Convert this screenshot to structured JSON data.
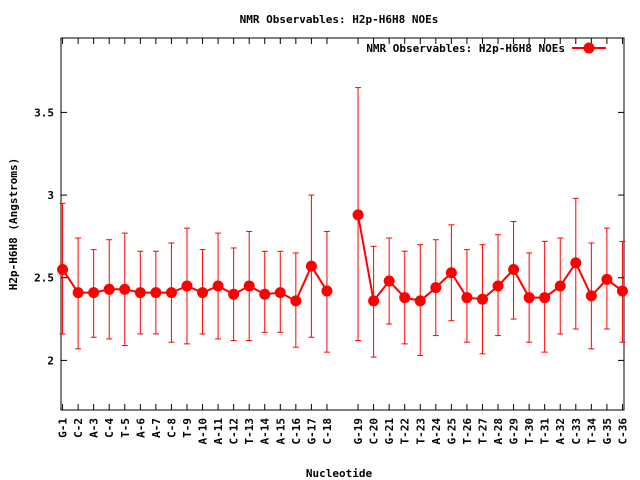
{
  "chart_data": {
    "type": "line",
    "title": "NMR Observables: H2p-H6H8 NOEs",
    "xlabel": "Nucleotide",
    "ylabel": "H2p-H6H8 (Angstroms)",
    "ylim": [
      1.7,
      3.95
    ],
    "yticks": [
      2,
      2.5,
      3,
      3.5
    ],
    "ytick_labels": [
      "2",
      "2.5",
      "3",
      "3.5"
    ],
    "grid": false,
    "legend_position": "top-right",
    "color": "#ff0000",
    "categories": [
      "G-1",
      "C-2",
      "A-3",
      "C-4",
      "T-5",
      "A-6",
      "A-7",
      "C-8",
      "T-9",
      "A-10",
      "A-11",
      "C-12",
      "T-13",
      "A-14",
      "A-15",
      "C-16",
      "G-17",
      "C-18",
      "G-19",
      "C-20",
      "G-21",
      "T-22",
      "T-23",
      "A-24",
      "G-25",
      "T-26",
      "T-27",
      "A-28",
      "G-29",
      "T-30",
      "T-31",
      "A-32",
      "C-33",
      "T-34",
      "G-35",
      "C-36"
    ],
    "x": [
      1,
      2,
      3,
      4,
      5,
      6,
      7,
      8,
      9,
      10,
      11,
      12,
      13,
      14,
      15,
      16,
      17,
      18,
      20,
      21,
      22,
      23,
      24,
      25,
      26,
      27,
      28,
      29,
      30,
      31,
      32,
      33,
      34,
      35,
      36,
      37
    ],
    "xlim": [
      0.9,
      37.1
    ],
    "series": [
      {
        "name": "NMR Observables: H2p-H6H8 NOEs",
        "segments": [
          [
            0,
            17
          ],
          [
            18,
            35
          ]
        ],
        "values": [
          2.55,
          2.41,
          2.41,
          2.43,
          2.43,
          2.41,
          2.41,
          2.41,
          2.45,
          2.41,
          2.45,
          2.4,
          2.45,
          2.4,
          2.41,
          2.36,
          2.57,
          2.42,
          2.88,
          2.36,
          2.48,
          2.38,
          2.36,
          2.44,
          2.53,
          2.38,
          2.37,
          2.45,
          2.55,
          2.38,
          2.38,
          2.45,
          2.59,
          2.39,
          2.49,
          2.42
        ],
        "err_low": [
          2.16,
          2.07,
          2.14,
          2.13,
          2.09,
          2.16,
          2.16,
          2.11,
          2.1,
          2.16,
          2.13,
          2.12,
          2.12,
          2.17,
          2.17,
          2.08,
          2.14,
          2.05,
          2.12,
          2.02,
          2.22,
          2.1,
          2.03,
          2.15,
          2.24,
          2.11,
          2.04,
          2.15,
          2.25,
          2.11,
          2.05,
          2.16,
          2.19,
          2.07,
          2.19,
          2.11
        ],
        "err_high": [
          2.95,
          2.74,
          2.67,
          2.73,
          2.77,
          2.66,
          2.66,
          2.71,
          2.8,
          2.67,
          2.77,
          2.68,
          2.78,
          2.66,
          2.66,
          2.65,
          3.0,
          2.78,
          3.65,
          2.69,
          2.74,
          2.66,
          2.7,
          2.73,
          2.82,
          2.67,
          2.7,
          2.76,
          2.84,
          2.65,
          2.72,
          2.74,
          2.98,
          2.71,
          2.8,
          2.72
        ]
      }
    ]
  }
}
